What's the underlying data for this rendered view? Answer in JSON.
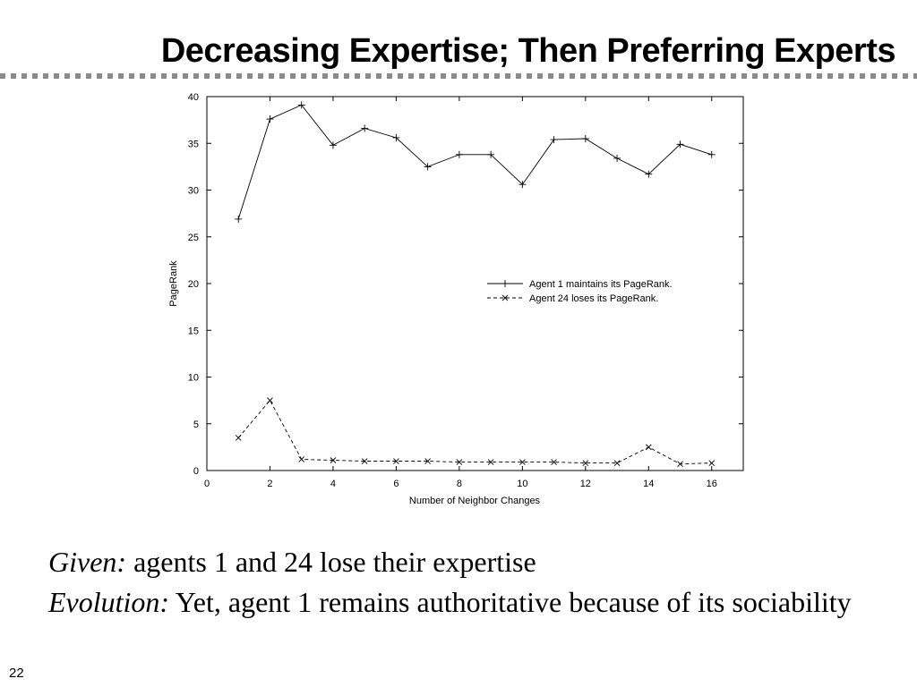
{
  "slide": {
    "title": "Decreasing Expertise; Then Preferring Experts",
    "caption": [
      {
        "lead": "Given:",
        "text": " agents 1 and 24 lose their expertise"
      },
      {
        "lead": "Evolution:",
        "text": " Yet, agent 1 remains authoritative because of its sociability"
      }
    ],
    "page_number": "22",
    "colors": {
      "text": "#000000",
      "divider": "#8a8a8a",
      "plot_line": "#000000"
    }
  },
  "chart_data": {
    "type": "line",
    "title": "",
    "xlabel": "Number of Neighbor Changes",
    "ylabel": "PageRank",
    "xlim": [
      0,
      17
    ],
    "ylim": [
      0,
      40
    ],
    "xticks": [
      0,
      2,
      4,
      6,
      8,
      10,
      12,
      14,
      16
    ],
    "yticks": [
      0,
      5,
      10,
      15,
      20,
      25,
      30,
      35,
      40
    ],
    "grid": false,
    "legend_position": "center-right",
    "x": [
      1,
      2,
      3,
      4,
      5,
      6,
      7,
      8,
      9,
      10,
      11,
      12,
      13,
      14,
      15,
      16
    ],
    "series": [
      {
        "name": "Agent 1 maintains its PageRank.",
        "marker": "plus",
        "line_style": "solid",
        "values": [
          26.9,
          37.6,
          39.1,
          34.8,
          36.6,
          35.6,
          32.5,
          33.8,
          33.8,
          30.6,
          35.4,
          35.5,
          33.4,
          31.7,
          34.9,
          33.8
        ]
      },
      {
        "name": "Agent 24 loses its PageRank.",
        "marker": "cross",
        "line_style": "dashed",
        "values": [
          3.5,
          7.5,
          1.2,
          1.1,
          1.0,
          1.0,
          1.0,
          0.9,
          0.9,
          0.9,
          0.9,
          0.8,
          0.8,
          2.5,
          0.7,
          0.8
        ]
      }
    ]
  }
}
